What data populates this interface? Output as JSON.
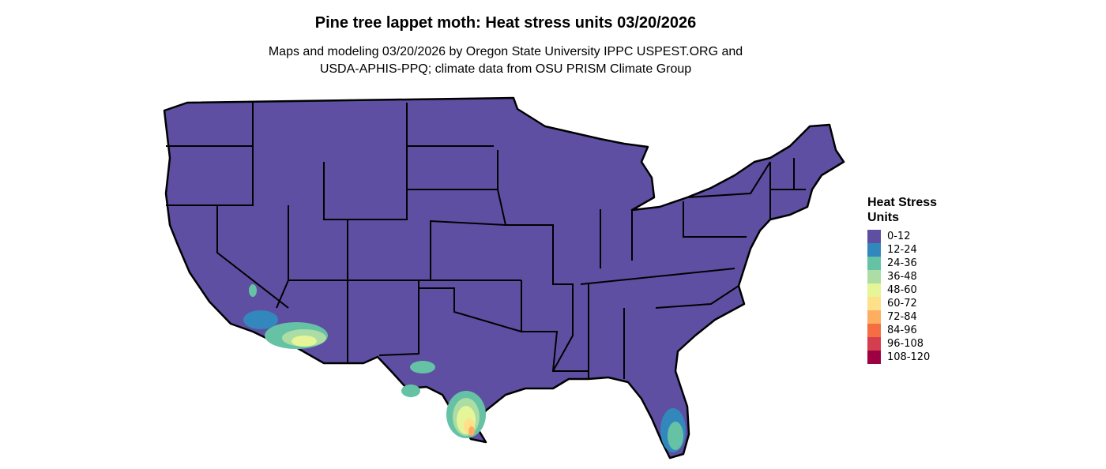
{
  "title": "Pine tree lappet moth: Heat stress units 03/20/2026",
  "subtitle_line1": "Maps and modeling 03/20/2026 by Oregon State University IPPC USPEST.ORG and",
  "subtitle_line2": "USDA-APHIS-PPQ; climate data from OSU PRISM Climate Group",
  "legend": {
    "title_line1": "Heat Stress",
    "title_line2": "Units",
    "items": [
      {
        "label": "0-12",
        "color": "#5e4fa2"
      },
      {
        "label": "12-24",
        "color": "#3288bd"
      },
      {
        "label": "24-36",
        "color": "#66c2a5"
      },
      {
        "label": "36-48",
        "color": "#abdda4"
      },
      {
        "label": "48-60",
        "color": "#e6f598"
      },
      {
        "label": "60-72",
        "color": "#fee08b"
      },
      {
        "label": "72-84",
        "color": "#fdae61"
      },
      {
        "label": "84-96",
        "color": "#f46d43"
      },
      {
        "label": "96-108",
        "color": "#d53e4f"
      },
      {
        "label": "108-120",
        "color": "#9e0142"
      }
    ]
  }
}
